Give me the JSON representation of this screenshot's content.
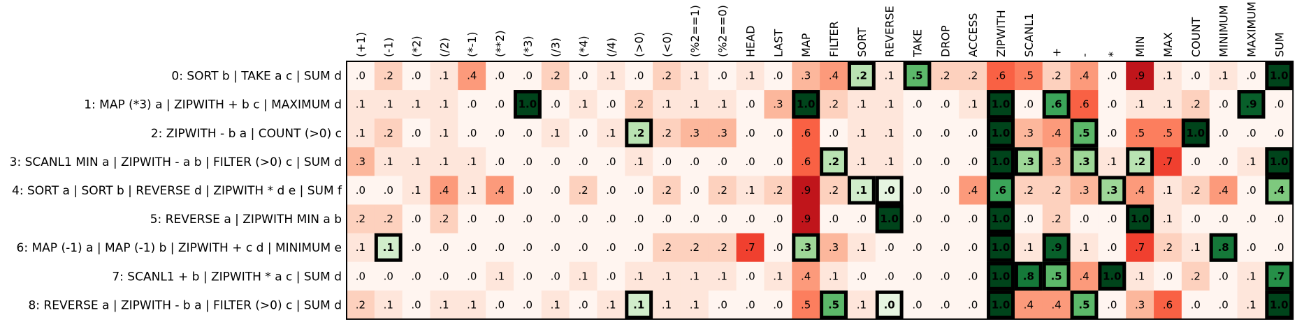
{
  "chart_data": {
    "type": "heatmap",
    "columns": [
      "(+1)",
      "(-1)",
      "(*2)",
      "(/2)",
      "(*-1)",
      "(**2)",
      "(*3)",
      "(/3)",
      "(*4)",
      "(/4)",
      "(>0)",
      "(<0)",
      "(%2==1)",
      "(%2==0)",
      "HEAD",
      "LAST",
      "MAP",
      "FILTER",
      "SORT",
      "REVERSE",
      "TAKE",
      "DROP",
      "ACCESS",
      "ZIPWITH",
      "SCANL1",
      "+",
      "-",
      "*",
      "MIN",
      "MAX",
      "COUNT",
      "MINIMUM",
      "MAXIMUM",
      "SUM"
    ],
    "rows": [
      "0: SORT b | TAKE a c | SUM d",
      "1: MAP (*3) a | ZIPWITH + b c | MAXIMUM d",
      "2: ZIPWITH - b a | COUNT (>0) c",
      "3: SCANL1 MIN a | ZIPWITH - a b | FILTER (>0) c | SUM d",
      "4: SORT a | SORT b | REVERSE d | ZIPWITH * d e | SUM f",
      "5: REVERSE a | ZIPWITH MIN a b",
      "6: MAP (-1) a | MAP (-1) b | ZIPWITH + c d | MINIMUM e",
      "7: SCANL1 + b | ZIPWITH * a c | SUM d",
      "8: REVERSE a | ZIPWITH - b a | FILTER (>0) c | SUM d"
    ],
    "values": [
      [
        0.0,
        0.2,
        0.0,
        0.1,
        0.4,
        0.0,
        0.0,
        0.2,
        0.0,
        0.1,
        0.0,
        0.2,
        0.1,
        0.0,
        0.1,
        0.0,
        0.3,
        0.4,
        0.2,
        0.1,
        0.5,
        0.2,
        0.2,
        0.6,
        0.5,
        0.2,
        0.4,
        0.0,
        0.9,
        0.1,
        0.0,
        0.1,
        0.0,
        1.0
      ],
      [
        0.1,
        0.1,
        0.1,
        0.1,
        0.0,
        0.0,
        1.0,
        0.0,
        0.1,
        0.0,
        0.2,
        0.1,
        0.1,
        0.1,
        0.0,
        0.3,
        1.0,
        0.2,
        0.1,
        0.1,
        0.0,
        0.0,
        0.1,
        1.0,
        0.0,
        0.6,
        0.6,
        0.0,
        0.1,
        0.1,
        0.2,
        0.0,
        0.9,
        0.0
      ],
      [
        0.1,
        0.2,
        0.0,
        0.1,
        0.0,
        0.0,
        0.0,
        0.1,
        0.0,
        0.1,
        0.2,
        0.2,
        0.3,
        0.3,
        0.0,
        0.0,
        0.6,
        0.0,
        0.1,
        0.1,
        0.0,
        0.0,
        0.0,
        1.0,
        0.3,
        0.4,
        0.5,
        0.0,
        0.5,
        0.5,
        1.0,
        0.0,
        0.0,
        0.0
      ],
      [
        0.3,
        0.1,
        0.1,
        0.1,
        0.1,
        0.0,
        0.0,
        0.0,
        0.0,
        0.0,
        0.1,
        0.0,
        0.0,
        0.0,
        0.0,
        0.0,
        0.6,
        0.2,
        0.1,
        0.1,
        0.0,
        0.0,
        0.0,
        1.0,
        0.3,
        0.3,
        0.3,
        0.1,
        0.2,
        0.7,
        0.0,
        0.0,
        0.1,
        1.0
      ],
      [
        0.0,
        0.0,
        0.1,
        0.4,
        0.1,
        0.4,
        0.0,
        0.0,
        0.2,
        0.0,
        0.0,
        0.2,
        0.0,
        0.2,
        0.1,
        0.2,
        0.9,
        0.2,
        0.1,
        0.0,
        0.0,
        0.0,
        0.4,
        0.6,
        0.2,
        0.2,
        0.3,
        0.3,
        0.4,
        0.1,
        0.2,
        0.4,
        0.0,
        0.4
      ],
      [
        0.2,
        0.2,
        0.0,
        0.2,
        0.0,
        0.0,
        0.0,
        0.0,
        0.0,
        0.0,
        0.0,
        0.0,
        0.0,
        0.0,
        0.0,
        0.0,
        0.9,
        0.0,
        0.0,
        1.0,
        0.0,
        0.0,
        0.0,
        1.0,
        0.0,
        0.2,
        0.0,
        0.0,
        1.0,
        0.1,
        0.0,
        0.0,
        0.0,
        0.0
      ],
      [
        0.1,
        0.1,
        0.0,
        0.0,
        0.0,
        0.0,
        0.0,
        0.0,
        0.0,
        0.0,
        0.0,
        0.2,
        0.2,
        0.2,
        0.7,
        0.0,
        0.3,
        0.3,
        0.1,
        0.0,
        0.0,
        0.0,
        0.0,
        1.0,
        0.1,
        0.9,
        0.1,
        0.0,
        0.7,
        0.2,
        0.1,
        0.8,
        0.0,
        0.0
      ],
      [
        0.0,
        0.0,
        0.0,
        0.0,
        0.0,
        0.1,
        0.0,
        0.0,
        0.1,
        0.0,
        0.1,
        0.1,
        0.1,
        0.1,
        0.0,
        0.1,
        0.4,
        0.1,
        0.0,
        0.0,
        0.0,
        0.0,
        0.0,
        1.0,
        0.8,
        0.5,
        0.4,
        1.0,
        0.1,
        0.0,
        0.2,
        0.0,
        0.1,
        0.7
      ],
      [
        0.2,
        0.1,
        0.0,
        0.1,
        0.1,
        0.0,
        0.0,
        0.1,
        0.0,
        0.1,
        0.1,
        0.1,
        0.1,
        0.0,
        0.0,
        0.0,
        0.5,
        0.5,
        0.1,
        0.0,
        0.0,
        0.0,
        0.0,
        1.0,
        0.4,
        0.4,
        0.5,
        0.0,
        0.3,
        0.6,
        0.0,
        0.0,
        0.1,
        1.0
      ]
    ],
    "labels": [
      [
        ".0",
        ".2",
        ".0",
        ".1",
        ".4",
        ".0",
        ".0",
        ".2",
        ".0",
        ".1",
        ".0",
        ".2",
        ".1",
        ".0",
        ".1",
        ".0",
        ".3",
        ".4",
        ".2",
        ".1",
        ".5",
        ".2",
        ".2",
        ".6",
        ".5",
        ".2",
        ".4",
        ".0",
        ".9",
        ".1",
        ".0",
        ".1",
        ".0",
        "1.0"
      ],
      [
        ".1",
        ".1",
        ".1",
        ".1",
        ".0",
        ".0",
        "1.0",
        ".0",
        ".1",
        ".0",
        ".2",
        ".1",
        ".1",
        ".1",
        ".0",
        ".3",
        "1.0",
        ".2",
        ".1",
        ".1",
        ".0",
        ".0",
        ".1",
        "1.0",
        ".0",
        ".6",
        ".6",
        ".0",
        ".1",
        ".1",
        ".2",
        ".0",
        ".9",
        ".0"
      ],
      [
        ".1",
        ".2",
        ".0",
        ".1",
        ".0",
        ".0",
        ".0",
        ".1",
        ".0",
        ".1",
        ".2",
        ".2",
        ".3",
        ".3",
        ".0",
        ".0",
        ".6",
        ".0",
        ".1",
        ".1",
        ".0",
        ".0",
        ".0",
        "1.0",
        ".3",
        ".4",
        ".5",
        ".0",
        ".5",
        ".5",
        "1.0",
        ".0",
        ".0",
        ".0"
      ],
      [
        ".3",
        ".1",
        ".1",
        ".1",
        ".1",
        ".0",
        ".0",
        ".0",
        ".0",
        ".0",
        ".1",
        ".0",
        ".0",
        ".0",
        ".0",
        ".0",
        ".6",
        ".2",
        ".1",
        ".1",
        ".0",
        ".0",
        ".0",
        "1.0",
        ".3",
        ".3",
        ".3",
        ".1",
        ".2",
        ".7",
        ".0",
        ".0",
        ".1",
        "1.0"
      ],
      [
        ".0",
        ".0",
        ".1",
        ".4",
        ".1",
        ".4",
        ".0",
        ".0",
        ".2",
        ".0",
        ".0",
        ".2",
        ".0",
        ".2",
        ".1",
        ".2",
        ".9",
        ".2",
        ".1",
        ".0",
        ".0",
        ".0",
        ".4",
        ".6",
        ".2",
        ".2",
        ".3",
        ".3",
        ".4",
        ".1",
        ".2",
        ".4",
        ".0",
        ".4"
      ],
      [
        ".2",
        ".2",
        ".0",
        ".2",
        ".0",
        ".0",
        ".0",
        ".0",
        ".0",
        ".0",
        ".0",
        ".0",
        ".0",
        ".0",
        ".0",
        ".0",
        ".9",
        ".0",
        ".0",
        "1.0",
        ".0",
        ".0",
        ".0",
        "1.0",
        ".0",
        ".2",
        ".0",
        ".0",
        "1.0",
        ".1",
        ".0",
        ".0",
        ".0",
        ".0"
      ],
      [
        ".1",
        ".1",
        ".0",
        ".0",
        ".0",
        ".0",
        ".0",
        ".0",
        ".0",
        ".0",
        ".0",
        ".2",
        ".2",
        ".2",
        ".7",
        ".0",
        ".3",
        ".3",
        ".1",
        ".0",
        ".0",
        ".0",
        ".0",
        "1.0",
        ".1",
        ".9",
        ".1",
        ".0",
        ".7",
        ".2",
        ".1",
        ".8",
        ".0",
        ".0"
      ],
      [
        ".0",
        ".0",
        ".0",
        ".0",
        ".0",
        ".1",
        ".0",
        ".0",
        ".1",
        ".0",
        ".1",
        ".1",
        ".1",
        ".1",
        ".0",
        ".1",
        ".4",
        ".1",
        ".0",
        ".0",
        ".0",
        ".0",
        ".0",
        "1.0",
        ".8",
        ".5",
        ".4",
        "1.0",
        ".1",
        ".0",
        ".2",
        ".0",
        ".1",
        ".7"
      ],
      [
        ".2",
        ".1",
        ".0",
        ".1",
        ".1",
        ".0",
        ".0",
        ".1",
        ".0",
        ".1",
        ".1",
        ".1",
        ".1",
        ".0",
        ".0",
        ".0",
        ".5",
        ".5",
        ".1",
        ".0",
        ".0",
        ".0",
        ".0",
        "1.0",
        ".4",
        ".4",
        ".5",
        ".0",
        ".3",
        ".6",
        ".0",
        ".0",
        ".1",
        "1.0"
      ]
    ],
    "highlighted": [
      [
        18,
        20,
        33
      ],
      [
        6,
        16,
        23,
        25,
        32
      ],
      [
        10,
        23,
        26,
        30
      ],
      [
        17,
        23,
        24,
        26,
        28,
        33
      ],
      [
        18,
        19,
        23,
        27,
        33
      ],
      [
        19,
        23,
        28
      ],
      [
        1,
        16,
        23,
        25,
        31
      ],
      [
        23,
        24,
        25,
        27,
        33
      ],
      [
        10,
        17,
        19,
        23,
        26,
        33
      ]
    ],
    "colors": {
      "grid_border": "#000000",
      "red_low": "#fff5f0",
      "red_high": "#a50f15",
      "green_low": "#f7fcf5",
      "green_high": "#00441b"
    }
  }
}
